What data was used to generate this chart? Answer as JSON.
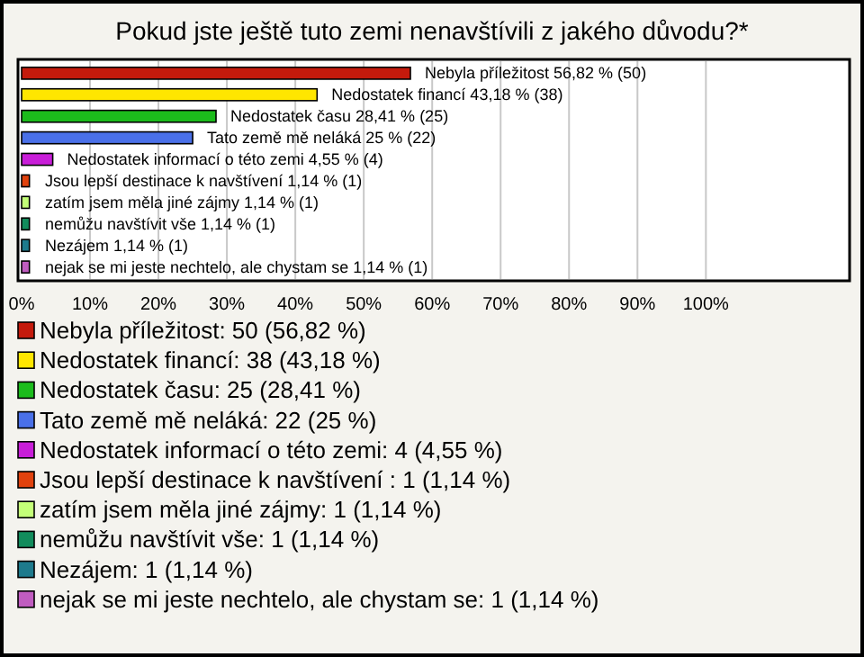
{
  "chart_data": {
    "type": "bar",
    "orientation": "horizontal",
    "title": "Pokud jste ještě tuto zemi nenavštívili z jakého důvodu?*",
    "categories": [
      "Nebyla příležitost",
      "Nedostatek financí",
      "Nedostatek času",
      "Tato země mě neláká",
      "Nedostatek informací o této zemi",
      "Jsou lepší destinace k navštívení ",
      "zatím jsem měla jiné zájmy",
      "nemůžu navštívit vše",
      "Nezájem",
      "nejak se mi jeste nechtelo, ale chystam se"
    ],
    "values": [
      56.82,
      43.18,
      28.41,
      25,
      4.55,
      1.14,
      1.14,
      1.14,
      1.14,
      1.14
    ],
    "value_labels": [
      "56,82 % (50)",
      "43,18 % (38)",
      "28,41 % (25)",
      "25 % (22)",
      "4,55 % (4)",
      "1,14 % (1)",
      "1,14 % (1)",
      "1,14 % (1)",
      "1,14 % (1)",
      "1,14 % (1)"
    ],
    "colors": [
      "#c41a0c",
      "#ffe600",
      "#1cbc1c",
      "#4a70e8",
      "#c81ed8",
      "#e0420e",
      "#c4ff78",
      "#128c5c",
      "#1e7a8c",
      "#c05cc0"
    ],
    "xlim": [
      0,
      121
    ],
    "xticks": [
      {
        "value": 0,
        "label": "0%"
      },
      {
        "value": 10,
        "label": "10%"
      },
      {
        "value": 20,
        "label": "20%"
      },
      {
        "value": 30,
        "label": "30%"
      },
      {
        "value": 40,
        "label": "40%"
      },
      {
        "value": 50,
        "label": "50%"
      },
      {
        "value": 60,
        "label": "60%"
      },
      {
        "value": 70,
        "label": "70%"
      },
      {
        "value": 80,
        "label": "80%"
      },
      {
        "value": 90,
        "label": "90%"
      },
      {
        "value": 100,
        "label": "100%"
      }
    ],
    "grid": "x",
    "annotations": [
      "Nebyla příležitost: 50 (56,82 %)",
      "Nedostatek financí: 38 (43,18 %)",
      "Nedostatek času: 25 (28,41 %)",
      "Tato země mě neláká: 22 (25 %)",
      "Nedostatek informací o této zemi: 4 (4,55 %)",
      "Jsou lepší destinace k navštívení : 1 (1,14 %)",
      "zatím jsem měla jiné zájmy: 1 (1,14 %)",
      "nemůžu navštívit vše: 1 (1,14 %)",
      "Nezájem: 1 (1,14 %)",
      "nejak se mi jeste nechtelo, ale chystam se: 1 (1,14 %)"
    ]
  }
}
